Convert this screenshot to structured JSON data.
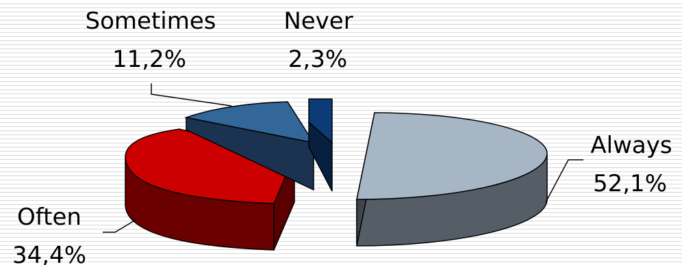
{
  "chart_data": {
    "type": "pie",
    "style": "3d-exploded",
    "slices": [
      {
        "label": "Always",
        "value": 52.1,
        "display": "52,1%",
        "top_color": "#a7b6c5",
        "side_color": "#555d66"
      },
      {
        "label": "Often",
        "value": 34.4,
        "display": "34,4%",
        "top_color": "#cc0000",
        "side_color": "#6b0000"
      },
      {
        "label": "Sometimes",
        "value": 11.2,
        "display": "11,2%",
        "top_color": "#336699",
        "side_color": "#1b3350"
      },
      {
        "label": "Never",
        "value": 2.3,
        "display": "2,3%",
        "top_color": "#0c3b78",
        "side_color": "#07203f"
      }
    ]
  }
}
